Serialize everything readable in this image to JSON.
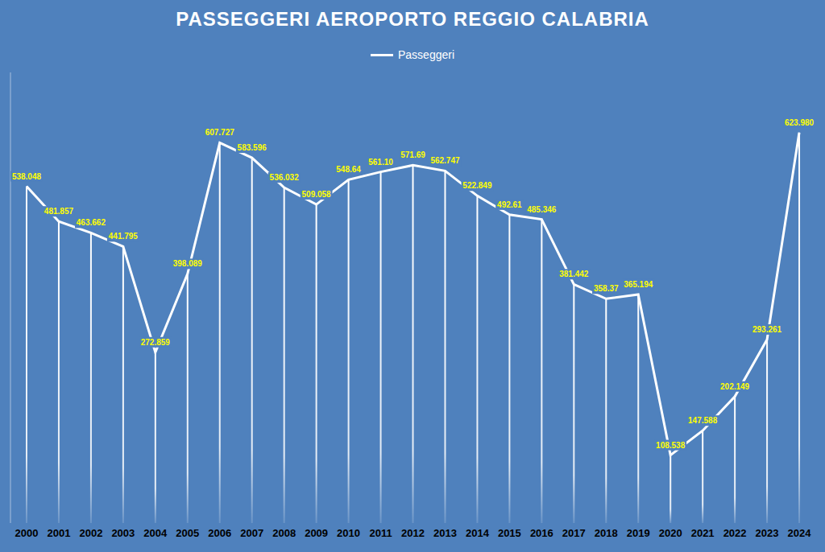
{
  "chart_data": {
    "type": "line",
    "title": "PASSEGGERI AEROPORTO REGGIO CALABRIA",
    "categories": [
      "2000",
      "2001",
      "2002",
      "2003",
      "2004",
      "2005",
      "2006",
      "2007",
      "2008",
      "2009",
      "2010",
      "2011",
      "2012",
      "2013",
      "2014",
      "2015",
      "2016",
      "2017",
      "2018",
      "2019",
      "2020",
      "2021",
      "2022",
      "2023",
      "2024"
    ],
    "series": [
      {
        "name": "Passeggeri",
        "color": "#ffffff",
        "values": [
          538048,
          481857,
          463662,
          441795,
          272859,
          398089,
          607727,
          583596,
          536032,
          509058,
          548640,
          561100,
          571690,
          562747,
          522849,
          492610,
          485346,
          381442,
          358370,
          365194,
          108538,
          147588,
          202149,
          293261,
          623980
        ],
        "value_labels": [
          "538.048",
          "481.857",
          "463.662",
          "441.795",
          "272.859",
          "398.089",
          "607.727",
          "583.596",
          "536.032",
          "509.058",
          "548.64",
          "561.10",
          "571.69",
          "562.747",
          "522.849",
          "492.61",
          "485.346",
          "381.442",
          "358.37",
          "365.194",
          "108.538",
          "147.588",
          "202.149",
          "293.261",
          "623.980"
        ]
      }
    ],
    "ylim": [
      0,
      720000
    ],
    "tick_labels": "x",
    "data_labels": true,
    "legend": "top",
    "grid": false
  }
}
